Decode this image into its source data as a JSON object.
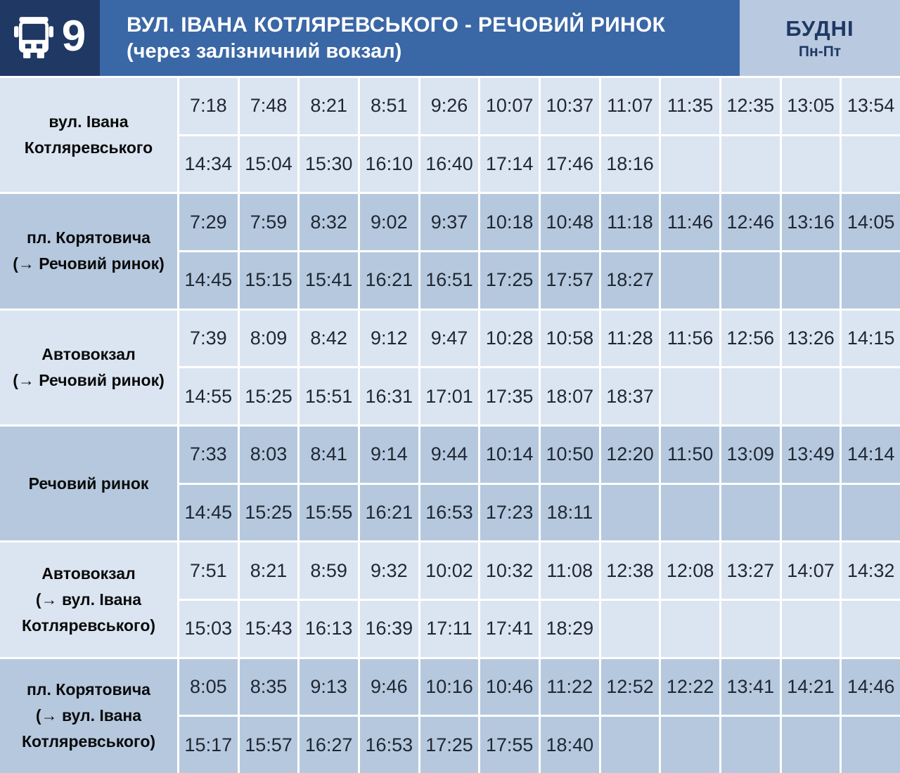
{
  "header": {
    "route_number": "9",
    "title_line1": "ВУЛ. ІВАНА КОТЛЯРЕВСЬКОГО - РЕЧОВИЙ РИНОК",
    "title_line2": "(через залізничний вокзал)",
    "day_label": "БУДНІ",
    "day_sublabel": "Пн-Пт"
  },
  "colors": {
    "badge_navy": "#1f3864",
    "title_band_blue": "#3a67a5",
    "day_box_blue": "#b9c9e0",
    "row_light": "#dbe5f1",
    "row_dark": "#b5c8de",
    "grid_line": "#ffffff",
    "time_text": "#1f2733",
    "header_text": "#ffffff"
  },
  "columns_per_line": 12,
  "stations": [
    {
      "label": "вул. Івана Котляревського",
      "label_lines": [
        "вул. Івана",
        "Котляревського"
      ],
      "lines": [
        [
          "7:18",
          "7:48",
          "8:21",
          "8:51",
          "9:26",
          "10:07",
          "10:37",
          "11:07",
          "11:35",
          "12:35",
          "13:05",
          "13:54"
        ],
        [
          "14:34",
          "15:04",
          "15:30",
          "16:10",
          "16:40",
          "17:14",
          "17:46",
          "18:16"
        ]
      ]
    },
    {
      "label": "пл. Корятовича (→ Речовий ринок)",
      "label_lines": [
        "пл. Корятовича",
        "(→ Речовий ринок)"
      ],
      "lines": [
        [
          "7:29",
          "7:59",
          "8:32",
          "9:02",
          "9:37",
          "10:18",
          "10:48",
          "11:18",
          "11:46",
          "12:46",
          "13:16",
          "14:05"
        ],
        [
          "14:45",
          "15:15",
          "15:41",
          "16:21",
          "16:51",
          "17:25",
          "17:57",
          "18:27"
        ]
      ]
    },
    {
      "label": "Автовокзал (→ Речовий ринок)",
      "label_lines": [
        "Автовокзал",
        "(→ Речовий ринок)"
      ],
      "lines": [
        [
          "7:39",
          "8:09",
          "8:42",
          "9:12",
          "9:47",
          "10:28",
          "10:58",
          "11:28",
          "11:56",
          "12:56",
          "13:26",
          "14:15"
        ],
        [
          "14:55",
          "15:25",
          "15:51",
          "16:31",
          "17:01",
          "17:35",
          "18:07",
          "18:37"
        ]
      ]
    },
    {
      "label": "Речовий ринок",
      "label_lines": [
        "Речовий ринок"
      ],
      "lines": [
        [
          "7:33",
          "8:03",
          "8:41",
          "9:14",
          "9:44",
          "10:14",
          "10:50",
          "12:20",
          "11:50",
          "13:09",
          "13:49",
          "14:14"
        ],
        [
          "14:45",
          "15:25",
          "15:55",
          "16:21",
          "16:53",
          "17:23",
          "18:11"
        ]
      ]
    },
    {
      "label": "Автовокзал (→ вул. Івана Котляревського)",
      "label_lines": [
        "Автовокзал",
        "(→ вул. Івана",
        "Котляревського)"
      ],
      "lines": [
        [
          "7:51",
          "8:21",
          "8:59",
          "9:32",
          "10:02",
          "10:32",
          "11:08",
          "12:38",
          "12:08",
          "13:27",
          "14:07",
          "14:32"
        ],
        [
          "15:03",
          "15:43",
          "16:13",
          "16:39",
          "17:11",
          "17:41",
          "18:29"
        ]
      ]
    },
    {
      "label": "пл. Корятовича (→ вул. Івана Котляревського)",
      "label_lines": [
        "пл. Корятовича",
        "(→ вул. Івана",
        "Котляревського)"
      ],
      "lines": [
        [
          "8:05",
          "8:35",
          "9:13",
          "9:46",
          "10:16",
          "10:46",
          "11:22",
          "12:52",
          "12:22",
          "13:41",
          "14:21",
          "14:46"
        ],
        [
          "15:17",
          "15:57",
          "16:27",
          "16:53",
          "17:25",
          "17:55",
          "18:40"
        ]
      ]
    }
  ]
}
